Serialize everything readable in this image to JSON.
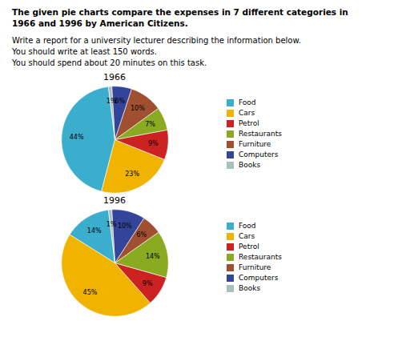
{
  "title": "The given pie charts compare the expenses in 7 different categories in\n1966 and 1996 by American Citizens.",
  "annotations": [
    "Write a report for a university lecturer describing the information below.",
    "You should write at least 150 words.",
    "You should spend about 20 minutes on this task."
  ],
  "chart_data": [
    {
      "type": "pie",
      "title": "1966",
      "categories": [
        "Food",
        "Cars",
        "Petrol",
        "Restaurants",
        "Furniture",
        "Computers",
        "Books"
      ],
      "values": [
        44,
        23,
        9,
        7,
        10,
        6,
        1
      ],
      "value_labels": [
        "44%",
        "23%",
        "9%",
        "7%",
        "10%",
        "6%",
        "1%"
      ],
      "colors": [
        "#3aaecc",
        "#f0b400",
        "#cc2222",
        "#8aaa22",
        "#a05030",
        "#334499",
        "#aabfbf"
      ],
      "data_labels": true,
      "legend": "right"
    },
    {
      "type": "pie",
      "title": "1996",
      "categories": [
        "Food",
        "Cars",
        "Petrol",
        "Restaurants",
        "Furniture",
        "Computers",
        "Books"
      ],
      "values": [
        14,
        45,
        9,
        14,
        6,
        10,
        1
      ],
      "value_labels": [
        "14%",
        "45%",
        "9%",
        "14%",
        "6%",
        "10%",
        "1%"
      ],
      "colors": [
        "#3aaecc",
        "#f0b400",
        "#cc2222",
        "#8aaa22",
        "#a05030",
        "#334499",
        "#aabfbf"
      ],
      "data_labels": true,
      "legend": "right"
    }
  ]
}
